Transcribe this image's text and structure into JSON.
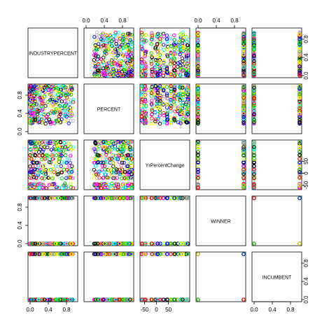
{
  "chart_data": {
    "type": "scatter",
    "variables": [
      "INDUSTRYPERCENT",
      "PERCENT",
      "YrPercentChange",
      "WINNER",
      "INCUMBENT"
    ],
    "ranges": [
      [
        0,
        1
      ],
      [
        0,
        1
      ],
      [
        -60,
        130
      ],
      [
        0,
        1
      ],
      [
        0,
        1
      ]
    ],
    "tick_values": [
      [
        0.0,
        0.4,
        0.8
      ],
      [
        0.0,
        0.4,
        0.8
      ],
      [
        -50,
        0,
        50
      ],
      [
        0.0,
        0.4,
        0.8
      ],
      [
        0.0,
        0.4,
        0.8
      ]
    ],
    "tick_labels": [
      [
        "0.0",
        "0.4",
        "0.8"
      ],
      [
        "0.0",
        "0.4",
        "0.8"
      ],
      [
        "-50",
        "0",
        "50"
      ],
      [
        "0.0",
        "0.4",
        "0.8"
      ],
      [
        "0.0",
        "0.4",
        "0.8"
      ]
    ],
    "binary_variables": [
      3,
      4
    ],
    "point_shape": "open-circle",
    "point_colors": [
      "#000000",
      "#ff0000",
      "#00cd00",
      "#0000ff",
      "#00ffff",
      "#ff00ff",
      "#ffff00",
      "#bebebe"
    ],
    "n_points": 360,
    "grid": false,
    "legend": "none"
  }
}
